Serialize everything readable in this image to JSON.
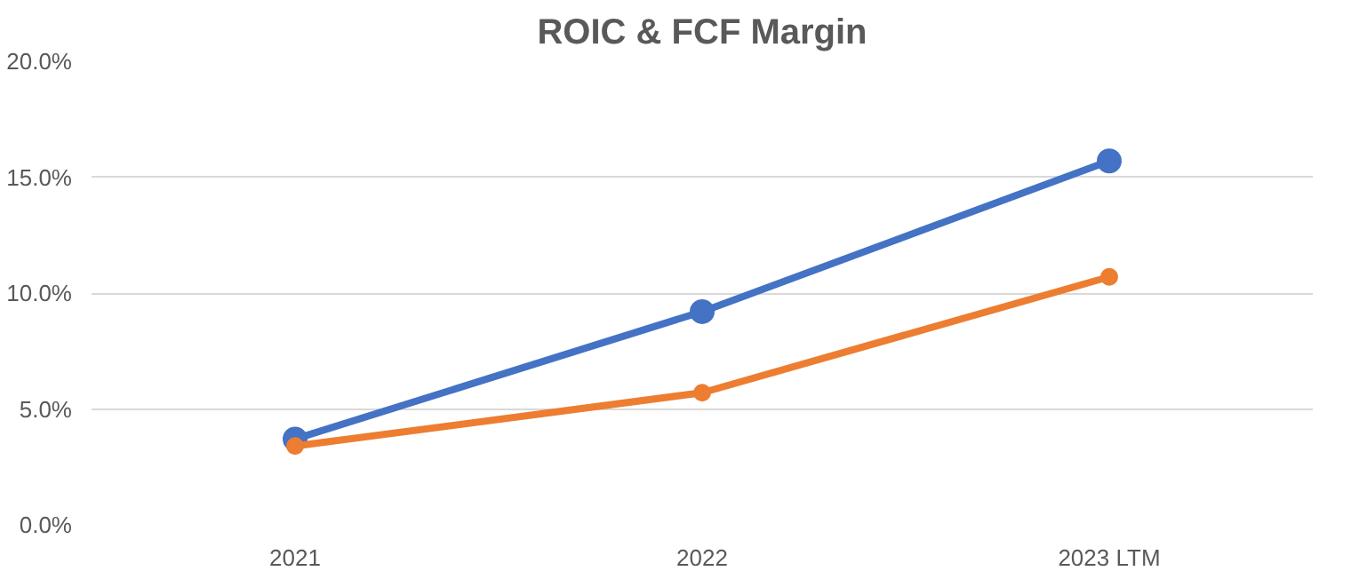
{
  "chart_data": {
    "type": "line",
    "title": "ROIC & FCF Margin",
    "categories": [
      "2021",
      "2022",
      "2023 LTM"
    ],
    "series": [
      {
        "color": "#4472c4",
        "values": [
          3.7,
          9.2,
          15.7
        ]
      },
      {
        "color": "#ed7d31",
        "values": [
          3.4,
          5.7,
          10.7
        ]
      }
    ],
    "ylim": [
      0,
      20
    ],
    "yticks": [
      {
        "value": 0,
        "label": "0.0%"
      },
      {
        "value": 5,
        "label": "5.0%"
      },
      {
        "value": 10,
        "label": "10.0%"
      },
      {
        "value": 15,
        "label": "15.0%"
      },
      {
        "value": 20,
        "label": "20.0%"
      }
    ],
    "grid": "y",
    "marker": "circle",
    "line_style": "solid"
  }
}
